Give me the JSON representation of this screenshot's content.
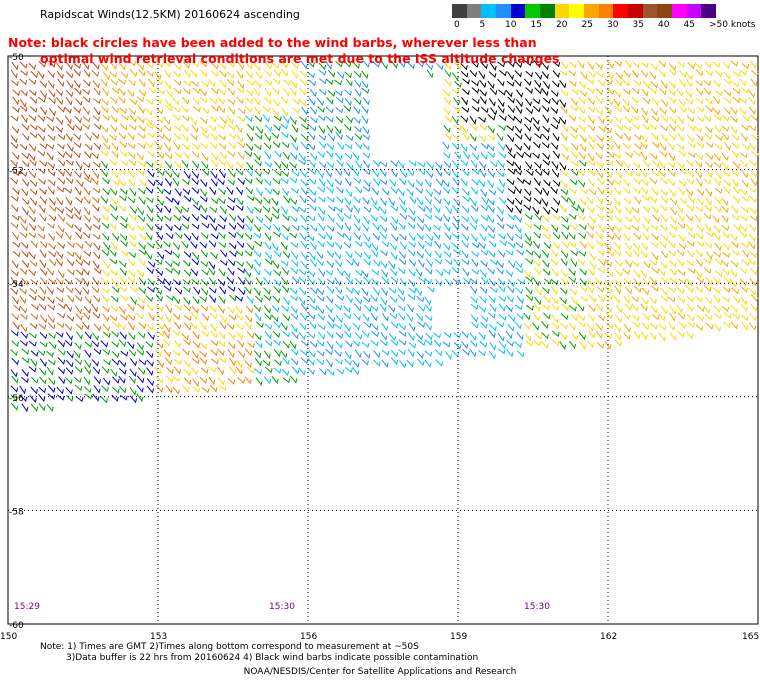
{
  "title": "Rapidscat Winds(12.5KM) 20160624 ascending",
  "colorbar": {
    "colors": [
      "#404040",
      "#7f7f7f",
      "#00bfff",
      "#1e90ff",
      "#0000cd",
      "#00c800",
      "#008000",
      "#ffd700",
      "#ffff00",
      "#ffa500",
      "#ff7f00",
      "#ff0000",
      "#c80000",
      "#a0522d",
      "#8b4513",
      "#ff00ff",
      "#c800ff",
      "#4b0082"
    ],
    "labels": [
      "0",
      "5",
      "10",
      "15",
      "20",
      "25",
      "30",
      "35",
      "40",
      "45",
      ">50 knots"
    ]
  },
  "note": {
    "line1": "Note: black circles have been added to the wind barbs, wherever less than",
    "line2": "optimal wind retrieval conditions are met due to the ISS altitude changes"
  },
  "chart_data": {
    "type": "map",
    "lat_labels": [
      "-50",
      "-52",
      "-54",
      "-56",
      "-58",
      "-60"
    ],
    "lon_labels": [
      "150",
      "153",
      "156",
      "159",
      "162",
      "165"
    ],
    "lat_range": [
      -60,
      -50
    ],
    "lon_range": [
      150,
      165
    ],
    "times": [
      {
        "label": "15:29",
        "lon": 150.2
      },
      {
        "label": "15:30",
        "lon": 155.3
      },
      {
        "label": "15:30",
        "lon": 160.4
      }
    ],
    "barb_color_zones": [
      {
        "color": "#c04a1a",
        "region": "west"
      },
      {
        "color": "#ffa500",
        "region": "west-central"
      },
      {
        "color": "#ffd700",
        "region": "north-west"
      },
      {
        "color": "#00a000",
        "region": "central"
      },
      {
        "color": "#00bfff",
        "region": "central-south"
      },
      {
        "color": "#0000cd",
        "region": "scattered"
      },
      {
        "color": "#000000",
        "region": "north-central contamination"
      },
      {
        "color": "#ffd700",
        "region": "east"
      },
      {
        "color": "#ff7f00",
        "region": "north-east"
      }
    ],
    "grid": true
  },
  "footer": {
    "notes1": "Note: 1) Times are GMT 2)Times along bottom correspond to measurement at ~50S",
    "notes2": "3)Data buffer is 22 hrs from 20160624 4) Black wind barbs indicate possible contamination",
    "credit": "NOAA/NESDIS/Center for Satellite Applications and Research"
  }
}
